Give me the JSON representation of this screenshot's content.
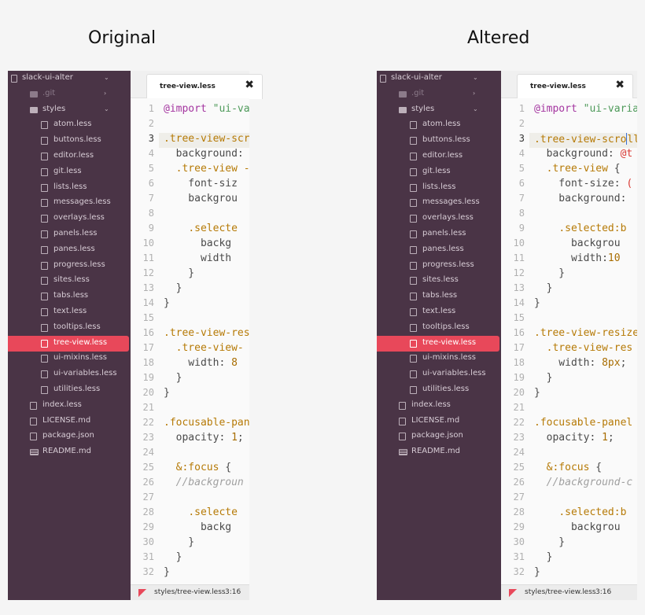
{
  "titles": {
    "original": "Original",
    "altered": "Altered"
  },
  "tree": [
    {
      "label": "slack-ui-alter",
      "kind": "repo",
      "indent": 0,
      "arrow": "down"
    },
    {
      "label": ".git",
      "kind": "folder",
      "indent": 1,
      "arrow": "right",
      "dim": true
    },
    {
      "label": "styles",
      "kind": "folder",
      "indent": 1,
      "arrow": "down"
    },
    {
      "label": "atom.less",
      "kind": "file",
      "indent": 2
    },
    {
      "label": "buttons.less",
      "kind": "file",
      "indent": 2
    },
    {
      "label": "editor.less",
      "kind": "file",
      "indent": 2
    },
    {
      "label": "git.less",
      "kind": "file",
      "indent": 2
    },
    {
      "label": "lists.less",
      "kind": "file",
      "indent": 2
    },
    {
      "label": "messages.less",
      "kind": "file",
      "indent": 2
    },
    {
      "label": "overlays.less",
      "kind": "file",
      "indent": 2
    },
    {
      "label": "panels.less",
      "kind": "file",
      "indent": 2
    },
    {
      "label": "panes.less",
      "kind": "file",
      "indent": 2
    },
    {
      "label": "progress.less",
      "kind": "file",
      "indent": 2
    },
    {
      "label": "sites.less",
      "kind": "file",
      "indent": 2
    },
    {
      "label": "tabs.less",
      "kind": "file",
      "indent": 2
    },
    {
      "label": "text.less",
      "kind": "file",
      "indent": 2
    },
    {
      "label": "tooltips.less",
      "kind": "file",
      "indent": 2
    },
    {
      "label": "tree-view.less",
      "kind": "file",
      "indent": 2,
      "selected": true
    },
    {
      "label": "ui-mixins.less",
      "kind": "file",
      "indent": 2
    },
    {
      "label": "ui-variables.less",
      "kind": "file",
      "indent": 2
    },
    {
      "label": "utilities.less",
      "kind": "file",
      "indent": 2
    },
    {
      "label": "index.less",
      "kind": "file",
      "indent": 1
    },
    {
      "label": "LICENSE.md",
      "kind": "file",
      "indent": 1
    },
    {
      "label": "package.json",
      "kind": "file",
      "indent": 1
    },
    {
      "label": "README.md",
      "kind": "book",
      "indent": 1
    }
  ],
  "tab": {
    "label": "tree-view.less",
    "close": "✖"
  },
  "current_line": 3,
  "line_numbers": [
    "1",
    "2",
    "3",
    "4",
    "5",
    "6",
    "7",
    "8",
    "9",
    "10",
    "11",
    "12",
    "13",
    "14",
    "15",
    "16",
    "17",
    "18",
    "19",
    "20",
    "21",
    "22",
    "23",
    "24",
    "25",
    "26",
    "27",
    "28",
    "29",
    "30",
    "31",
    "32"
  ],
  "code_original": [
    [
      [
        "kw",
        "@import"
      ],
      [
        "p",
        " "
      ],
      [
        "str",
        "\"ui-va"
      ]
    ],
    [],
    [
      [
        "sel",
        ".tree-view-scr"
      ]
    ],
    [
      [
        "p",
        "  background:"
      ]
    ],
    [
      [
        "p",
        "  "
      ],
      [
        "sel",
        ".tree-view -"
      ]
    ],
    [
      [
        "p",
        "    font-siz"
      ]
    ],
    [
      [
        "p",
        "    backgrou"
      ]
    ],
    [],
    [
      [
        "p",
        "    "
      ],
      [
        "sel",
        ".selecte"
      ]
    ],
    [
      [
        "p",
        "      backg"
      ]
    ],
    [
      [
        "p",
        "      width"
      ]
    ],
    [
      [
        "p",
        "    }"
      ]
    ],
    [
      [
        "p",
        "  }"
      ]
    ],
    [
      [
        "p",
        "}"
      ]
    ],
    [],
    [
      [
        "sel",
        ".tree-view-res"
      ]
    ],
    [
      [
        "p",
        "  "
      ],
      [
        "sel",
        ".tree-view-"
      ]
    ],
    [
      [
        "p",
        "    width: "
      ],
      [
        "num",
        "8"
      ]
    ],
    [
      [
        "p",
        "  }"
      ]
    ],
    [
      [
        "p",
        "}"
      ]
    ],
    [],
    [
      [
        "sel",
        ".focusable-pan"
      ]
    ],
    [
      [
        "p",
        "  opacity: "
      ],
      [
        "num",
        "1"
      ],
      [
        "p",
        ";"
      ]
    ],
    [],
    [
      [
        "p",
        "  "
      ],
      [
        "sel",
        "&:focus"
      ],
      [
        "p",
        " {"
      ]
    ],
    [
      [
        "p",
        "  "
      ],
      [
        "com",
        "//backgroun"
      ]
    ],
    [],
    [
      [
        "p",
        "    "
      ],
      [
        "sel",
        ".selecte"
      ]
    ],
    [
      [
        "p",
        "      backg"
      ]
    ],
    [
      [
        "p",
        "    }"
      ]
    ],
    [
      [
        "p",
        "  }"
      ]
    ],
    [
      [
        "p",
        "}"
      ]
    ]
  ],
  "code_altered": [
    [
      [
        "kw",
        "@import"
      ],
      [
        "p",
        " "
      ],
      [
        "str",
        "\"ui-varial"
      ]
    ],
    [],
    [
      [
        "sel",
        ".tree-view-scro"
      ],
      [
        "cursor",
        ""
      ],
      [
        "sel",
        "lle"
      ]
    ],
    [
      [
        "p",
        "  background: "
      ],
      [
        "var",
        "@t"
      ]
    ],
    [
      [
        "p",
        "  "
      ],
      [
        "sel",
        ".tree-view"
      ],
      [
        "p",
        " {"
      ]
    ],
    [
      [
        "p",
        "    font-size: "
      ],
      [
        "var",
        "("
      ]
    ],
    [
      [
        "p",
        "    background:"
      ]
    ],
    [],
    [
      [
        "p",
        "    "
      ],
      [
        "sel",
        ".selected:b"
      ]
    ],
    [
      [
        "p",
        "      backgrou"
      ]
    ],
    [
      [
        "p",
        "      width:"
      ],
      [
        "num",
        "10"
      ]
    ],
    [
      [
        "p",
        "    }"
      ]
    ],
    [
      [
        "p",
        "  }"
      ]
    ],
    [
      [
        "p",
        "}"
      ]
    ],
    [],
    [
      [
        "sel",
        ".tree-view-resize"
      ]
    ],
    [
      [
        "p",
        "  "
      ],
      [
        "sel",
        ".tree-view-res"
      ]
    ],
    [
      [
        "p",
        "    width: "
      ],
      [
        "num",
        "8px"
      ],
      [
        "p",
        ";"
      ]
    ],
    [
      [
        "p",
        "  }"
      ]
    ],
    [
      [
        "p",
        "}"
      ]
    ],
    [],
    [
      [
        "sel",
        ".focusable-panel"
      ],
      [
        "p",
        " -"
      ]
    ],
    [
      [
        "p",
        "  opacity: "
      ],
      [
        "num",
        "1"
      ],
      [
        "p",
        ";"
      ]
    ],
    [],
    [
      [
        "p",
        "  "
      ],
      [
        "sel",
        "&:focus"
      ],
      [
        "p",
        " {"
      ]
    ],
    [
      [
        "p",
        "  "
      ],
      [
        "com",
        "//background-c"
      ]
    ],
    [],
    [
      [
        "p",
        "    "
      ],
      [
        "sel",
        ".selected:b"
      ]
    ],
    [
      [
        "p",
        "      backgrou"
      ]
    ],
    [
      [
        "p",
        "    }"
      ]
    ],
    [
      [
        "p",
        "  }"
      ]
    ],
    [
      [
        "p",
        "}"
      ]
    ]
  ],
  "status": {
    "path": "styles/tree-view.less",
    "position": "3:16"
  },
  "colors": {
    "sidebar": "#4a3446",
    "selection": "#e8485a",
    "editor_bg": "#fafafa"
  }
}
